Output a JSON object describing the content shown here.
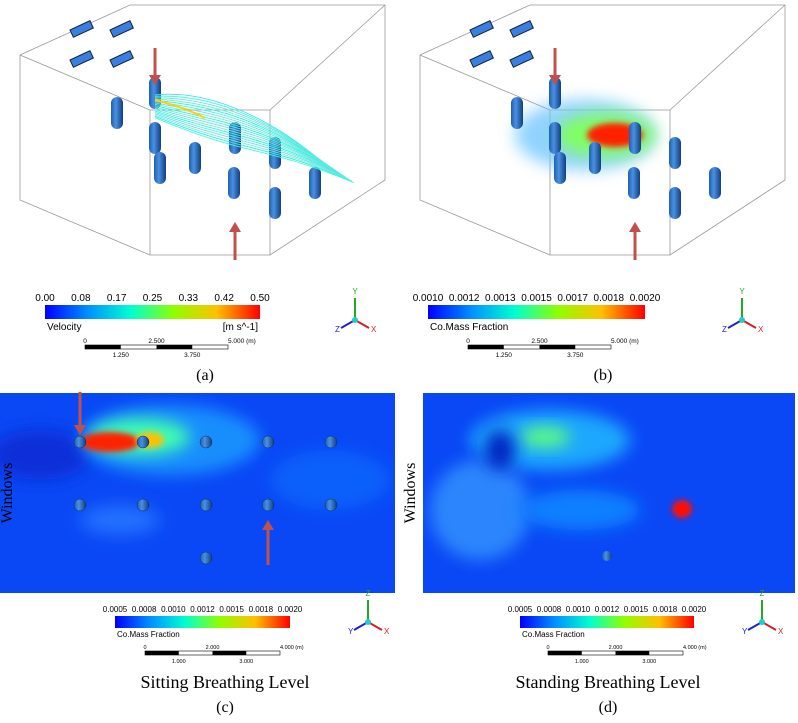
{
  "panels": [
    {
      "label": "(a)",
      "colorbar": {
        "ticks": [
          "0.00",
          "0.08",
          "0.17",
          "0.25",
          "0.33",
          "0.42",
          "0.50"
        ],
        "title": "Velocity",
        "unit": "[m s^-1]"
      },
      "scale": {
        "top": [
          "0",
          "2.500",
          "5.000 (m)"
        ],
        "bottom": [
          "1.250",
          "3.750"
        ]
      },
      "axes": [
        "Y",
        "Z",
        "X"
      ]
    },
    {
      "label": "(b)",
      "colorbar": {
        "ticks": [
          "0.0010",
          "0.0012",
          "0.0013",
          "0.0015",
          "0.0017",
          "0.0018",
          "0.0020"
        ],
        "title": "Co.Mass Fraction"
      },
      "scale": {
        "top": [
          "0",
          "2.500",
          "5.000 (m)"
        ],
        "bottom": [
          "1.250",
          "3.750"
        ]
      },
      "axes": [
        "Y",
        "Z",
        "X"
      ]
    },
    {
      "label": "(c)",
      "caption": "Sitting Breathing Level",
      "side": "Windows",
      "colorbar": {
        "ticks": [
          "0.0005",
          "0.0008",
          "0.0010",
          "0.0012",
          "0.0015",
          "0.0018",
          "0.0020"
        ],
        "title": "Co.Mass Fraction"
      },
      "scale": {
        "top": [
          "0",
          "2.000",
          "4.000 (m)"
        ],
        "bottom": [
          "1.000",
          "3.000"
        ]
      },
      "axes": [
        "Z",
        "Y",
        "X"
      ]
    },
    {
      "label": "(d)",
      "caption": "Standing Breathing Level",
      "side": "Windows",
      "colorbar": {
        "ticks": [
          "0.0005",
          "0.0008",
          "0.0010",
          "0.0012",
          "0.0015",
          "0.0018",
          "0.0020"
        ],
        "title": "Co.Mass Fraction"
      },
      "scale": {
        "top": [
          "0",
          "2.000",
          "4.000 (m)"
        ],
        "bottom": [
          "1.000",
          "3.000"
        ]
      },
      "axes": [
        "Z",
        "Y",
        "X"
      ]
    }
  ]
}
